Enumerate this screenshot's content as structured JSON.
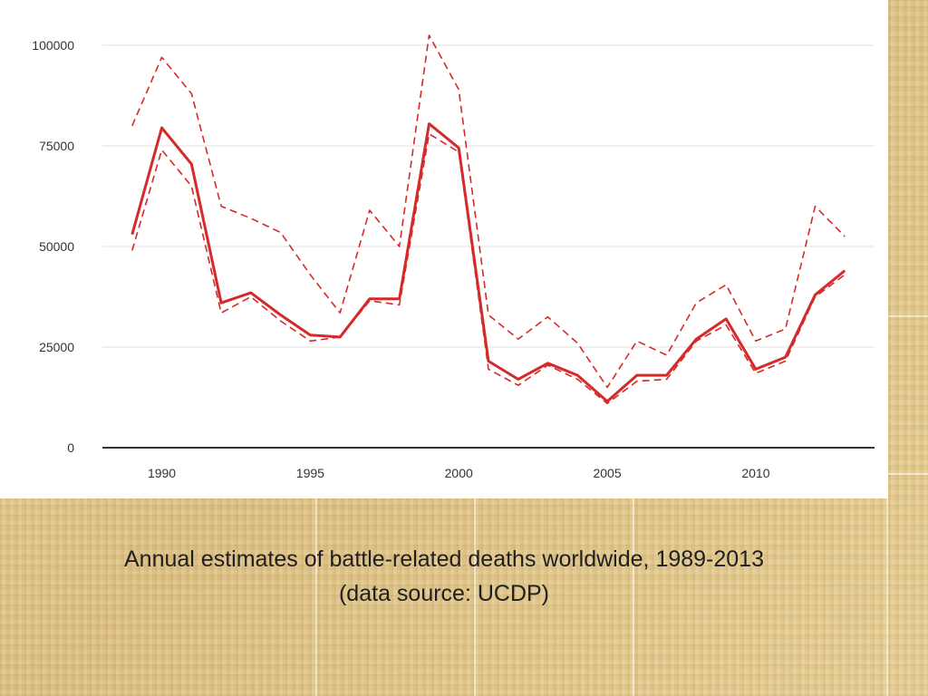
{
  "caption": {
    "line1": "Annual estimates of battle-related deaths worldwide, 1989-2013",
    "line2": "(data source: UCDP)"
  },
  "colors": {
    "series": "#d42a2a",
    "grid": "#e6e6e6",
    "axis": "#333333",
    "panel": "#ffffff",
    "background": "#e3c98f"
  },
  "chart_data": {
    "type": "line",
    "title": "",
    "xlabel": "",
    "ylabel": "",
    "xlim": [
      1988,
      2014
    ],
    "ylim": [
      0,
      100000
    ],
    "grid": true,
    "legend": "none",
    "x_ticks": [
      1990,
      1995,
      2000,
      2005,
      2010
    ],
    "x_tick_labels": [
      "1990",
      "1995",
      "2000",
      "2005",
      "2010"
    ],
    "y_ticks": [
      0,
      25000,
      50000,
      75000,
      100000
    ],
    "y_tick_labels": [
      "0",
      "25000",
      "50000",
      "75000",
      "100000"
    ],
    "x": [
      1989,
      1990,
      1991,
      1992,
      1993,
      1994,
      1995,
      1996,
      1997,
      1998,
      1999,
      2000,
      2001,
      2002,
      2003,
      2004,
      2005,
      2006,
      2007,
      2008,
      2009,
      2010,
      2011,
      2012,
      2013
    ],
    "series": [
      {
        "style": "solid",
        "values": [
          53000,
          79500,
          70500,
          36000,
          38500,
          33000,
          28000,
          27500,
          37000,
          37000,
          80500,
          74500,
          21500,
          17000,
          21000,
          18000,
          11500,
          18000,
          18000,
          27000,
          32000,
          19500,
          22500,
          38000,
          44000
        ]
      },
      {
        "style": "dashed",
        "values": [
          80000,
          97000,
          88000,
          60000,
          57000,
          53500,
          43000,
          33500,
          59000,
          50000,
          102500,
          89000,
          33000,
          27000,
          32500,
          26000,
          15000,
          26500,
          23000,
          36000,
          40500,
          26500,
          29500,
          60000,
          52500
        ]
      },
      {
        "style": "dashed",
        "values": [
          49000,
          74000,
          65000,
          33500,
          37500,
          31500,
          26500,
          27500,
          36500,
          35500,
          78000,
          73500,
          19500,
          15500,
          20500,
          17000,
          11000,
          16500,
          17000,
          26500,
          30500,
          18500,
          21500,
          37500,
          43000
        ]
      }
    ]
  }
}
